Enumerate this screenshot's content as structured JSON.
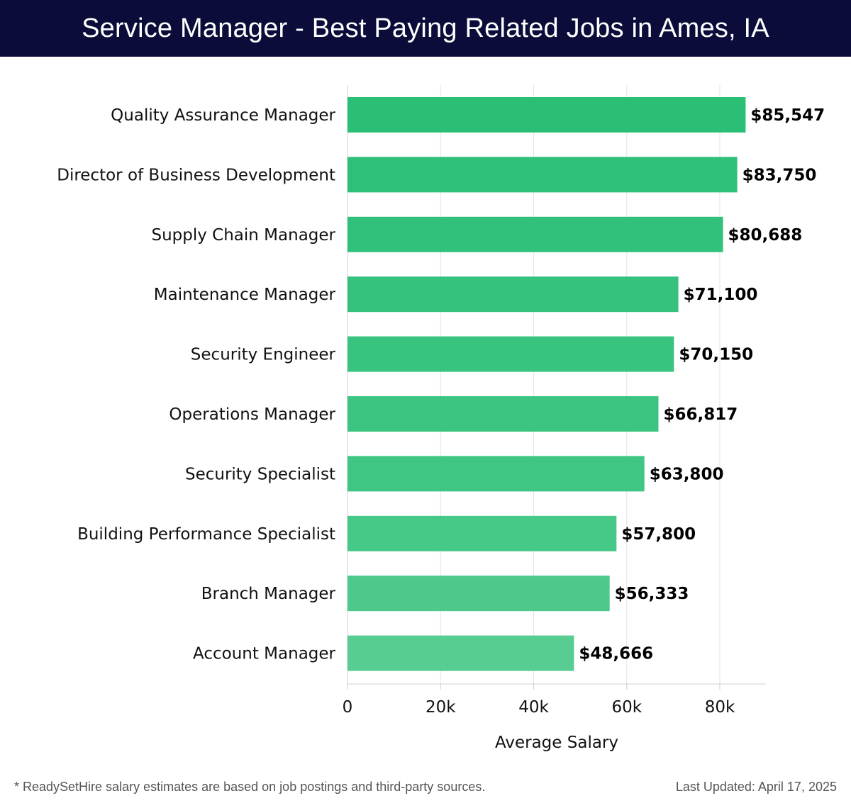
{
  "header": {
    "title": "Service Manager - Best Paying Related Jobs in Ames, IA"
  },
  "footer": {
    "note": "* ReadySetHire salary estimates are based on job postings and third-party sources.",
    "updated": "Last Updated: April 17, 2025"
  },
  "chart_data": {
    "type": "bar",
    "orientation": "horizontal",
    "title": "Service Manager - Best Paying Related Jobs in Ames, IA",
    "xlabel": "Average Salary",
    "ylabel": "",
    "xlim": [
      0,
      90000
    ],
    "ticks": [
      0,
      20000,
      40000,
      60000,
      80000
    ],
    "tick_labels": [
      "0",
      "20k",
      "40k",
      "60k",
      "80k"
    ],
    "grid": true,
    "categories": [
      "Quality Assurance Manager",
      "Director of Business Development",
      "Supply Chain Manager",
      "Maintenance Manager",
      "Security Engineer",
      "Operations Manager",
      "Security Specialist",
      "Building Performance Specialist",
      "Branch Manager",
      "Account Manager"
    ],
    "values": [
      85547,
      83750,
      80688,
      71100,
      70150,
      66817,
      63800,
      57800,
      56333,
      48666
    ],
    "value_labels": [
      "$85,547",
      "$83,750",
      "$80,688",
      "$71,100",
      "$70,150",
      "$66,817",
      "$63,800",
      "$57,800",
      "$56,333",
      "$48,666"
    ],
    "colors": [
      "#2bbf76",
      "#2ec078",
      "#31c17a",
      "#35c27c",
      "#38c37e",
      "#3cc581",
      "#40c683",
      "#46c887",
      "#4dca8b",
      "#57cd92"
    ]
  }
}
